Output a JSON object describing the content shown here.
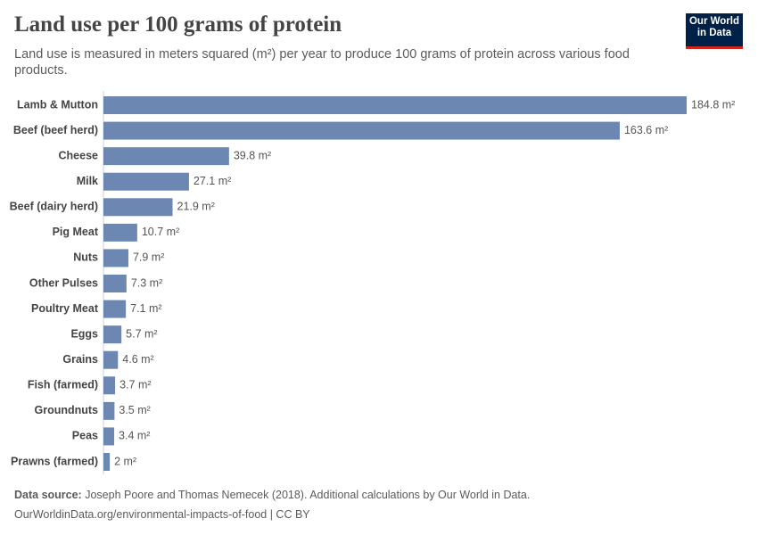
{
  "title": "Land use per 100 grams of protein",
  "subtitle": "Land use is measured in meters squared (m²) per year to produce 100 grams of protein across various food products.",
  "logo": [
    "Our World",
    "in Data"
  ],
  "chart_data": {
    "type": "bar",
    "orientation": "horizontal",
    "color": "#6d87b3",
    "categories": [
      "Lamb & Mutton",
      "Beef (beef herd)",
      "Cheese",
      "Milk",
      "Beef (dairy herd)",
      "Pig Meat",
      "Nuts",
      "Other Pulses",
      "Poultry Meat",
      "Eggs",
      "Grains",
      "Fish (farmed)",
      "Groundnuts",
      "Peas",
      "Prawns (farmed)"
    ],
    "values": [
      184.8,
      163.6,
      39.8,
      27.1,
      21.9,
      10.7,
      7.9,
      7.3,
      7.1,
      5.7,
      4.6,
      3.7,
      3.5,
      3.4,
      2
    ],
    "value_labels": [
      "184.8 m²",
      "163.6 m²",
      "39.8 m²",
      "27.1 m²",
      "21.9 m²",
      "10.7 m²",
      "7.9 m²",
      "7.3 m²",
      "7.1 m²",
      "5.7 m²",
      "4.6 m²",
      "3.7 m²",
      "3.5 m²",
      "3.4 m²",
      "2 m²"
    ]
  },
  "footer": {
    "source_label": "Data source:",
    "source": "Joseph Poore and Thomas Nemecek (2018). Additional calculations by Our World in Data.",
    "url": "OurWorldinData.org/environmental-impacts-of-food | CC BY"
  }
}
